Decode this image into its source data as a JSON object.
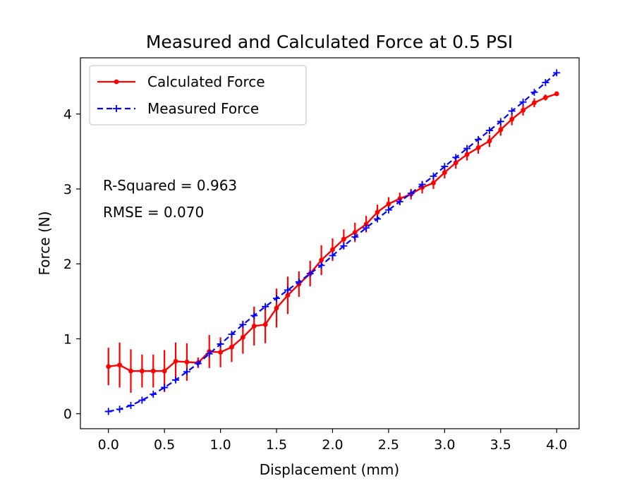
{
  "chart_data": {
    "type": "line",
    "title": "Measured and Calculated Force at 0.5 PSI",
    "xlabel": "Displacement (mm)",
    "ylabel": "Force (N)",
    "xlim": [
      -0.25,
      4.2
    ],
    "ylim": [
      -0.2,
      4.75
    ],
    "x_ticks": [
      0.0,
      0.5,
      1.0,
      1.5,
      2.0,
      2.5,
      3.0,
      3.5,
      4.0
    ],
    "x_tick_labels": [
      "0.0",
      "0.5",
      "1.0",
      "1.5",
      "2.0",
      "2.5",
      "3.0",
      "3.5",
      "4.0"
    ],
    "y_ticks": [
      0,
      1,
      2,
      3,
      4
    ],
    "y_tick_labels": [
      "0",
      "1",
      "2",
      "3",
      "4"
    ],
    "grid": false,
    "legend_position": "upper left",
    "x": [
      0.0,
      0.1,
      0.2,
      0.3,
      0.4,
      0.5,
      0.6,
      0.7,
      0.8,
      0.9,
      1.0,
      1.1,
      1.2,
      1.3,
      1.4,
      1.5,
      1.6,
      1.7,
      1.8,
      1.9,
      2.0,
      2.1,
      2.2,
      2.3,
      2.4,
      2.5,
      2.6,
      2.7,
      2.8,
      2.9,
      3.0,
      3.1,
      3.2,
      3.3,
      3.4,
      3.5,
      3.6,
      3.7,
      3.8,
      3.9,
      4.0
    ],
    "series": [
      {
        "name": "Calculated Force",
        "color": "#ff0000",
        "style": "solid line with dot markers and vertical error bars",
        "values": [
          0.63,
          0.65,
          0.57,
          0.57,
          0.57,
          0.57,
          0.7,
          0.69,
          0.68,
          0.83,
          0.82,
          0.89,
          1.02,
          1.17,
          1.19,
          1.41,
          1.58,
          1.73,
          1.87,
          2.05,
          2.19,
          2.33,
          2.42,
          2.53,
          2.69,
          2.8,
          2.87,
          2.93,
          3.02,
          3.08,
          3.22,
          3.35,
          3.46,
          3.55,
          3.64,
          3.79,
          3.93,
          4.05,
          4.15,
          4.22,
          4.27
        ],
        "error": [
          0.25,
          0.3,
          0.29,
          0.22,
          0.22,
          0.28,
          0.25,
          0.25,
          0.07,
          0.22,
          0.2,
          0.2,
          0.22,
          0.26,
          0.25,
          0.26,
          0.25,
          0.17,
          0.17,
          0.2,
          0.15,
          0.13,
          0.13,
          0.11,
          0.1,
          0.09,
          0.08,
          0.07,
          0.08,
          0.08,
          0.08,
          0.08,
          0.08,
          0.08,
          0.08,
          0.08,
          0.08,
          0.07,
          0.06,
          0.04,
          0.03
        ]
      },
      {
        "name": "Measured Force",
        "color": "#0000ff",
        "style": "dashed line with plus markers",
        "values": [
          0.03,
          0.06,
          0.11,
          0.18,
          0.26,
          0.35,
          0.45,
          0.56,
          0.67,
          0.8,
          0.93,
          1.06,
          1.19,
          1.31,
          1.43,
          1.54,
          1.65,
          1.76,
          1.87,
          1.98,
          2.11,
          2.24,
          2.36,
          2.48,
          2.6,
          2.72,
          2.83,
          2.94,
          3.06,
          3.17,
          3.3,
          3.42,
          3.54,
          3.66,
          3.78,
          3.9,
          4.04,
          4.16,
          4.29,
          4.42,
          4.55
        ]
      }
    ],
    "annotations": [
      "R-Squared = 0.963",
      "RMSE = 0.070"
    ]
  }
}
